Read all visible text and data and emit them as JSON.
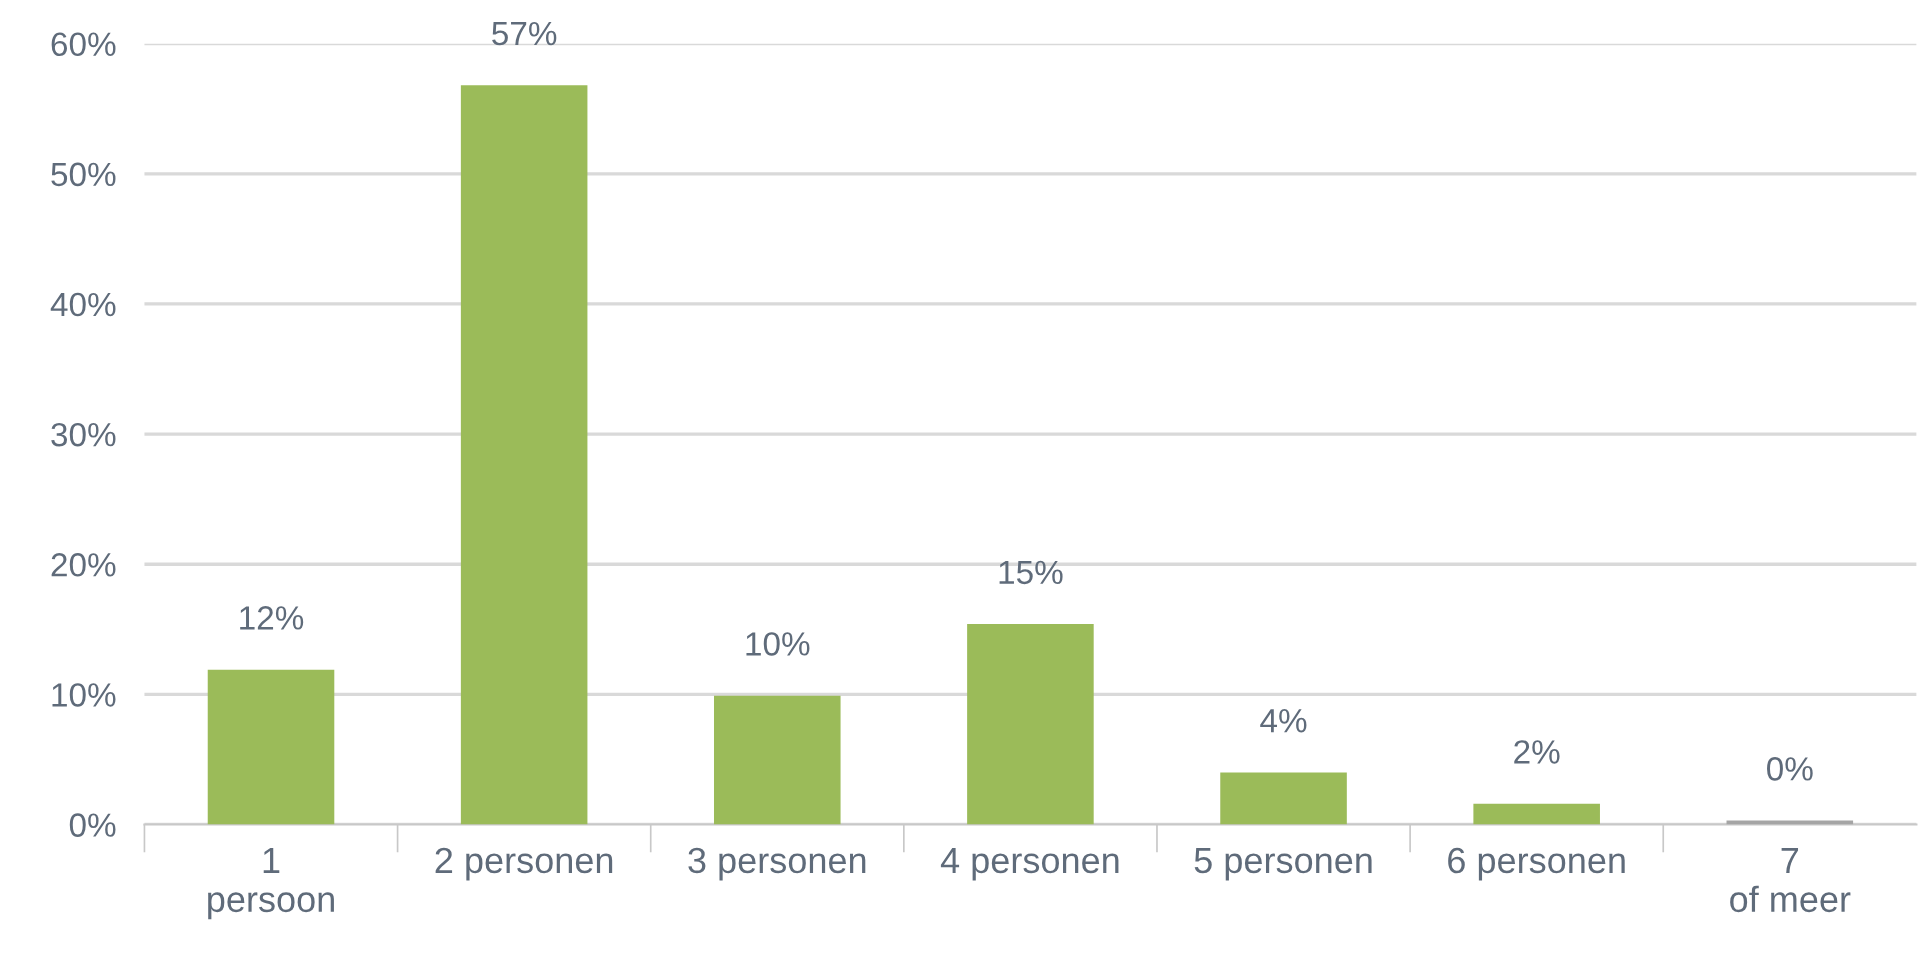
{
  "chart_data": {
    "type": "bar",
    "categories": [
      "1\npersoon",
      "2 personen",
      "3 personen",
      "4 personen",
      "5 personen",
      "6 personen",
      "7\nof meer"
    ],
    "values": [
      11.9,
      56.8,
      9.9,
      15.4,
      4.0,
      1.6,
      0.3
    ],
    "value_labels": [
      "12%",
      "57%",
      "10%",
      "15%",
      "4%",
      "2%",
      "0%"
    ],
    "colors": [
      "#9bbb59",
      "#9bbb59",
      "#9bbb59",
      "#9bbb59",
      "#9bbb59",
      "#9bbb59",
      "#a5a5a5"
    ],
    "ylim": [
      0,
      60
    ],
    "yticks": [
      {
        "value": 0,
        "label": "0%"
      },
      {
        "value": 10,
        "label": "10%"
      },
      {
        "value": 20,
        "label": "20%"
      },
      {
        "value": 30,
        "label": "30%"
      },
      {
        "value": 40,
        "label": "40%"
      },
      {
        "value": 50,
        "label": "50%"
      },
      {
        "value": 60,
        "label": "60%"
      }
    ],
    "grid": "y",
    "legend": false
  }
}
